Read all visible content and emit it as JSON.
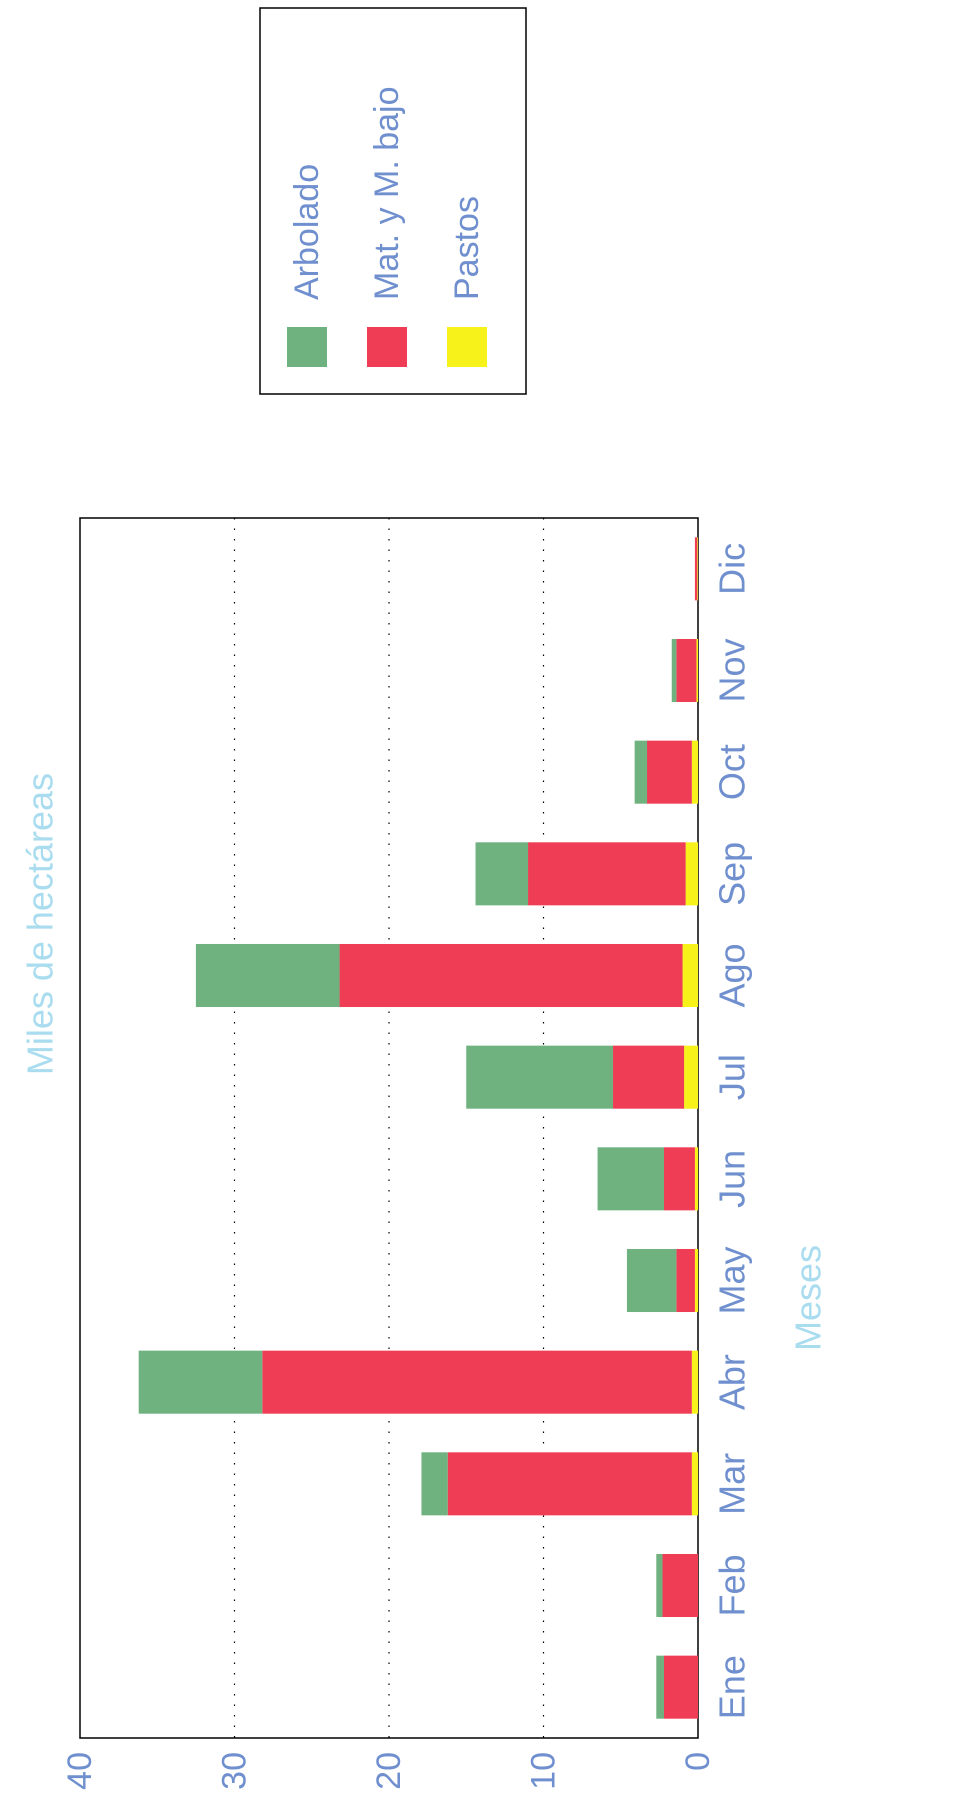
{
  "chart_data": {
    "type": "bar",
    "stacked": true,
    "orientation": "rotated",
    "categories": [
      "Ene",
      "Feb",
      "Mar",
      "Abr",
      "May",
      "Jun",
      "Jul",
      "Ago",
      "Sep",
      "Oct",
      "Nov",
      "Dic"
    ],
    "series": [
      {
        "name": "Pastos",
        "color": "#f7f21a",
        "values": [
          0.0,
          0.0,
          0.4,
          0.4,
          0.2,
          0.2,
          0.9,
          1.0,
          0.8,
          0.4,
          0.1,
          0.05
        ]
      },
      {
        "name": "Mat. y M. bajo",
        "color": "#ee3d55",
        "values": [
          2.2,
          2.3,
          15.8,
          27.8,
          1.2,
          2.0,
          4.6,
          22.2,
          10.2,
          2.9,
          1.3,
          0.15
        ]
      },
      {
        "name": "Arbolado",
        "color": "#6fb27f",
        "values": [
          0.5,
          0.4,
          1.7,
          8.0,
          3.2,
          4.3,
          9.5,
          9.3,
          3.4,
          0.8,
          0.3,
          0.0
        ]
      }
    ],
    "legend_order": [
      "Arbolado",
      "Mat. y M. bajo",
      "Pastos"
    ],
    "xlabel": "Meses",
    "ylabel": "Miles de hectáreas",
    "ylim": [
      0,
      40
    ],
    "yticks": [
      0,
      10,
      20,
      30,
      40
    ],
    "grid": "dotted",
    "legend_position": "top",
    "colors": {
      "axis_label": "#a9dcef",
      "tick_label": "#6f8fce",
      "legend_text": "#6f8fce"
    }
  }
}
